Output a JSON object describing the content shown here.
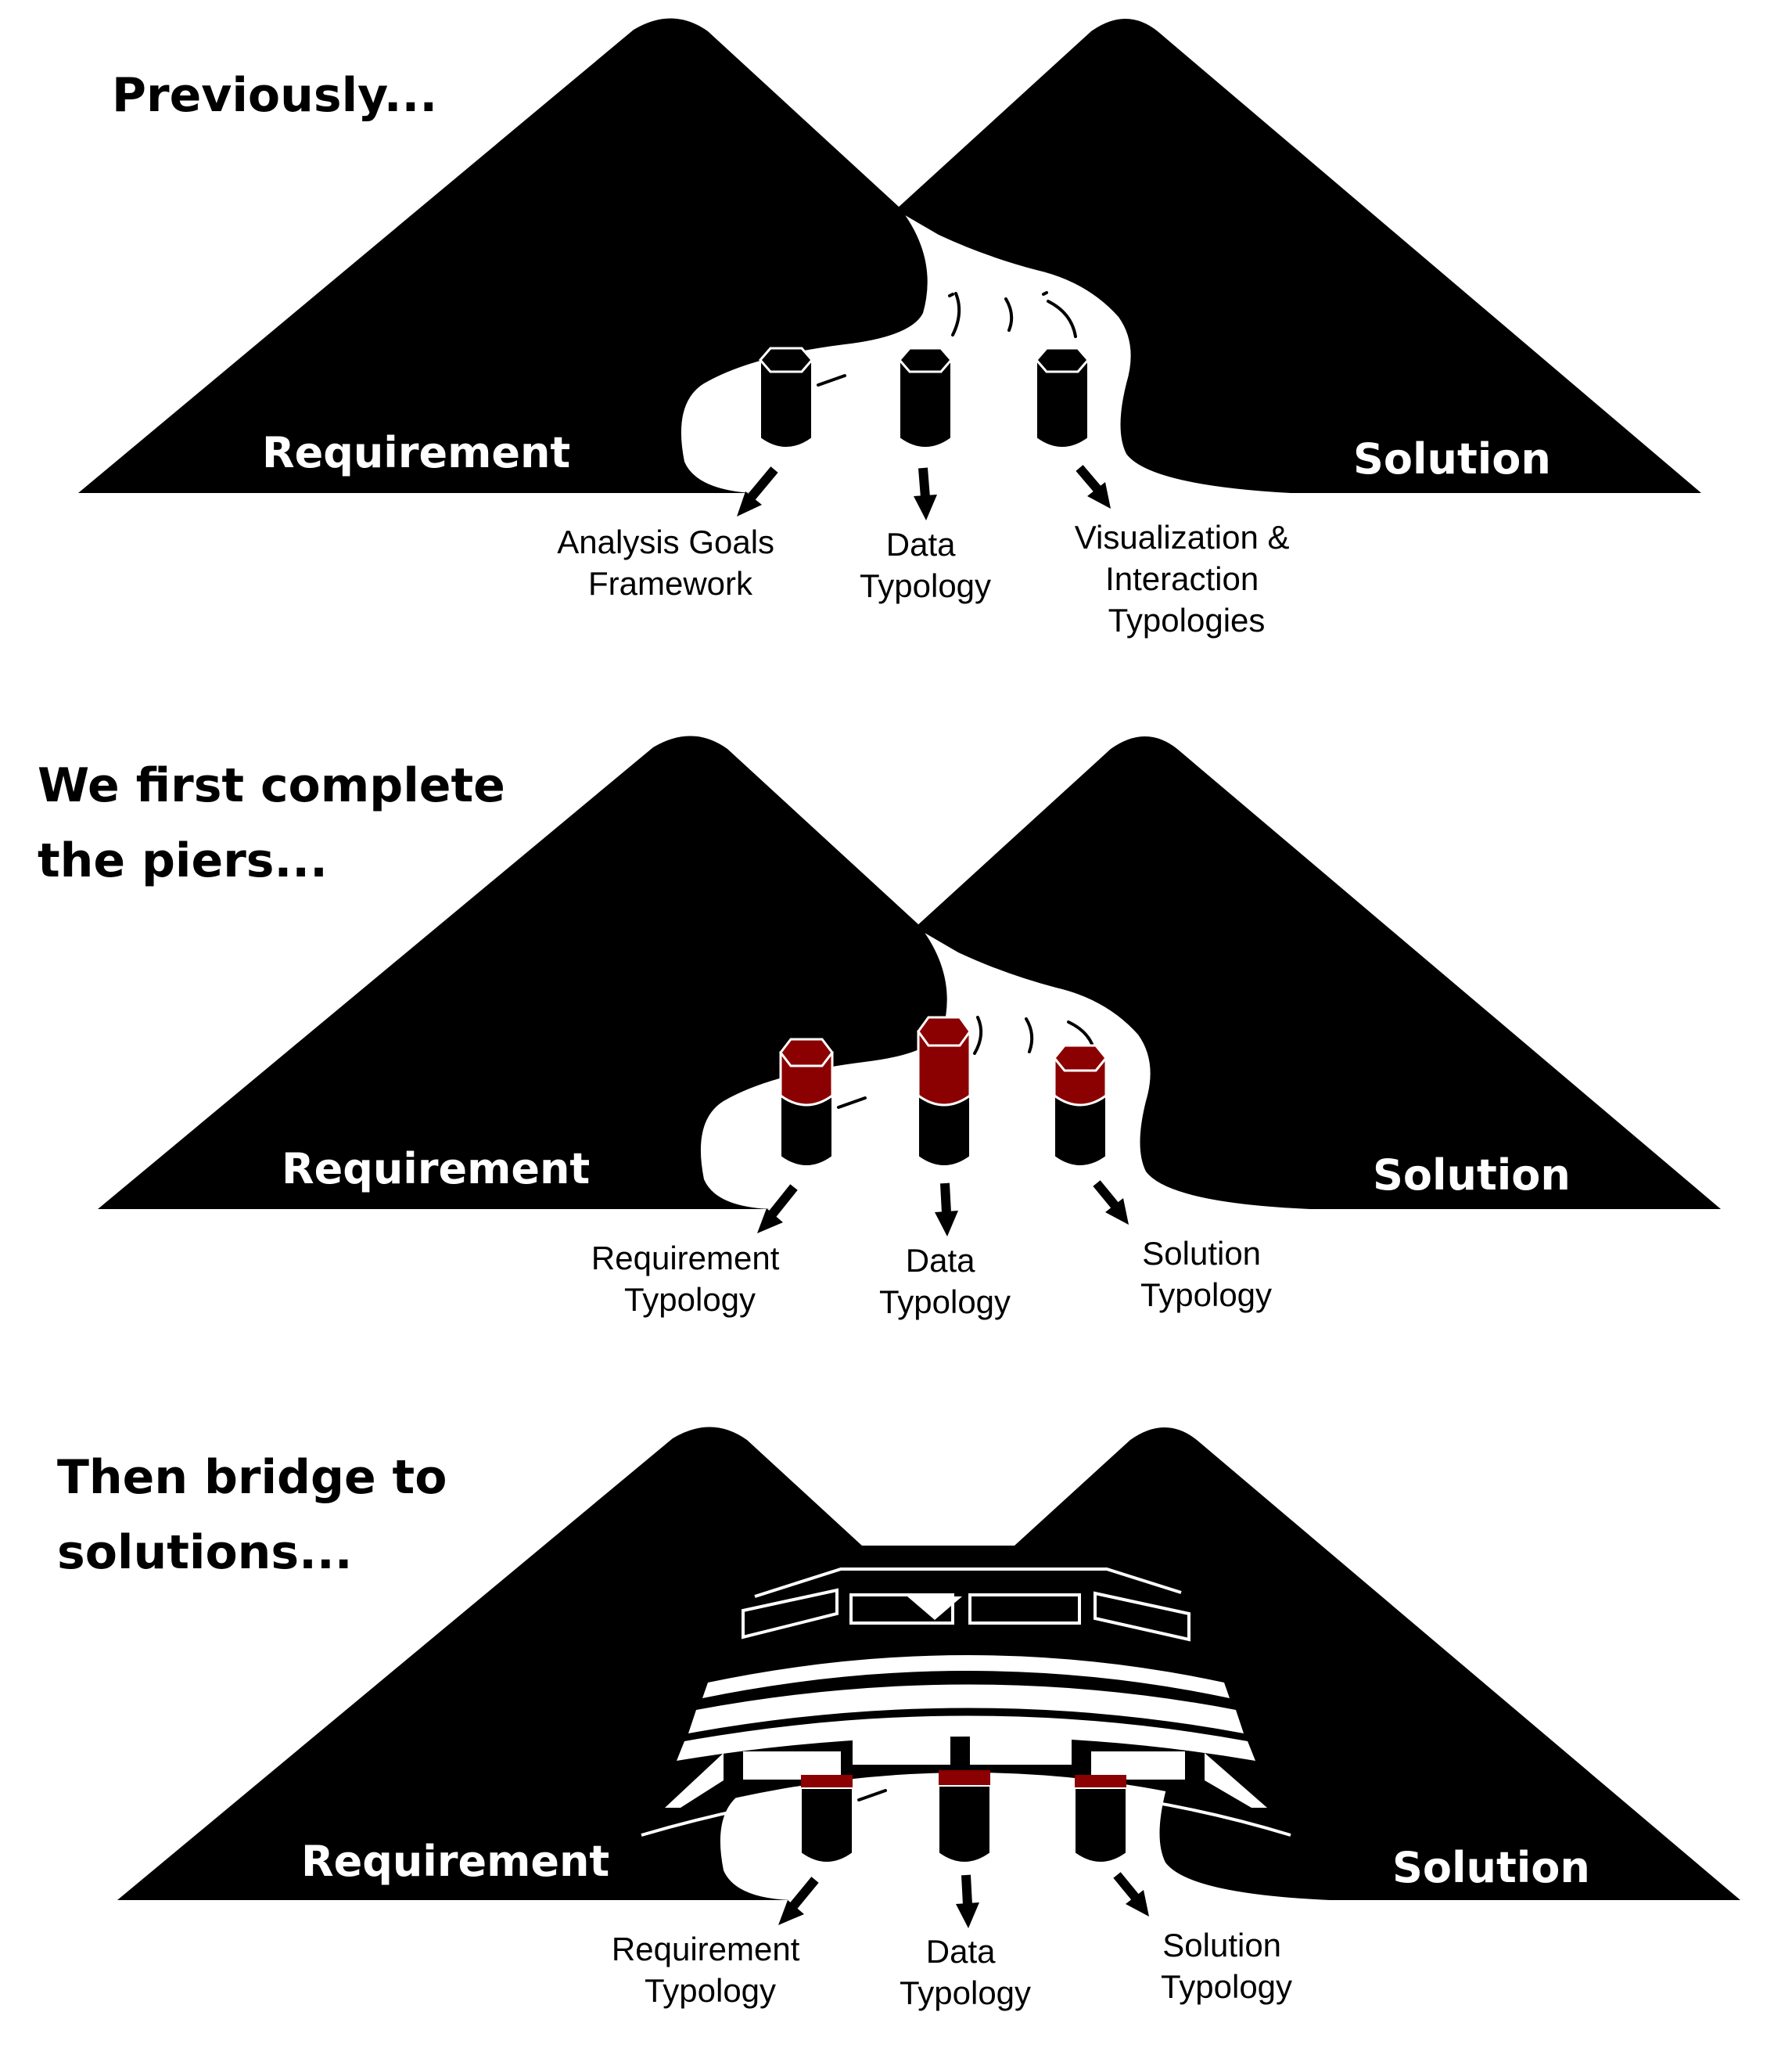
{
  "colors": {
    "ink": "#000000",
    "paper": "#ffffff",
    "pier_cap": "#8b0000"
  },
  "stages": [
    {
      "heading": [
        "Previously..."
      ],
      "left_label": "Requirement",
      "right_label": "Solution",
      "piers": [
        {
          "label": [
            "Analysis Goals",
            "Framework"
          ],
          "completed": false
        },
        {
          "label": [
            "Data",
            "Typology"
          ],
          "completed": false
        },
        {
          "label": [
            "Visualization &",
            "Interaction",
            "Typologies"
          ],
          "completed": false
        }
      ],
      "bridge": false
    },
    {
      "heading": [
        "We first complete",
        "the piers..."
      ],
      "left_label": "Requirement",
      "right_label": "Solution",
      "piers": [
        {
          "label": [
            "Requirement",
            "Typology"
          ],
          "completed": true
        },
        {
          "label": [
            "Data",
            "Typology"
          ],
          "completed": true
        },
        {
          "label": [
            "Solution",
            "Typology"
          ],
          "completed": true
        }
      ],
      "bridge": false
    },
    {
      "heading": [
        "Then bridge to",
        "solutions..."
      ],
      "left_label": "Requirement",
      "right_label": "Solution",
      "piers": [
        {
          "label": [
            "Requirement",
            "Typology"
          ],
          "completed": true
        },
        {
          "label": [
            "Data",
            "Typology"
          ],
          "completed": true
        },
        {
          "label": [
            "Solution",
            "Typology"
          ],
          "completed": true
        }
      ],
      "bridge": true
    }
  ]
}
